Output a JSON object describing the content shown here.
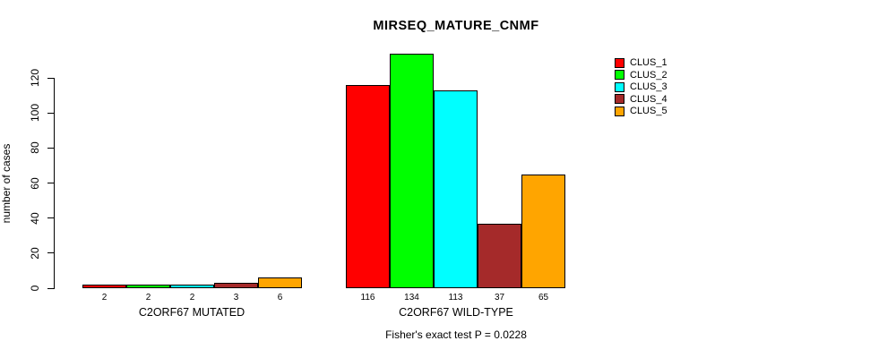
{
  "title": "MIRSEQ_MATURE_CNMF",
  "footer": "Fisher's exact test P = 0.0228",
  "chart_data": {
    "type": "bar",
    "title": "MIRSEQ_MATURE_CNMF",
    "ylabel": "number of cases",
    "xlabel": "",
    "ylim": [
      0,
      134
    ],
    "yticks": [
      0,
      20,
      40,
      60,
      80,
      100,
      120
    ],
    "grid": false,
    "bar_borders": true,
    "legend_position": "top-right",
    "categories": [
      "C2ORF67 MUTATED",
      "C2ORF67 WILD-TYPE"
    ],
    "series": [
      {
        "name": "CLUS_1",
        "color": "#FF0000",
        "values": [
          2,
          116
        ]
      },
      {
        "name": "CLUS_2",
        "color": "#00FF00",
        "values": [
          2,
          134
        ]
      },
      {
        "name": "CLUS_3",
        "color": "#00FFFF",
        "values": [
          2,
          113
        ]
      },
      {
        "name": "CLUS_4",
        "color": "#A52A2A",
        "values": [
          3,
          37
        ]
      },
      {
        "name": "CLUS_5",
        "color": "#FFA500",
        "values": [
          6,
          65
        ]
      }
    ],
    "bar_value_labels": [
      [
        "2",
        "2",
        "2",
        "3",
        "6"
      ],
      [
        "116",
        "134",
        "113",
        "37",
        "65"
      ]
    ],
    "annotation": "Fisher's exact test P = 0.0228"
  }
}
